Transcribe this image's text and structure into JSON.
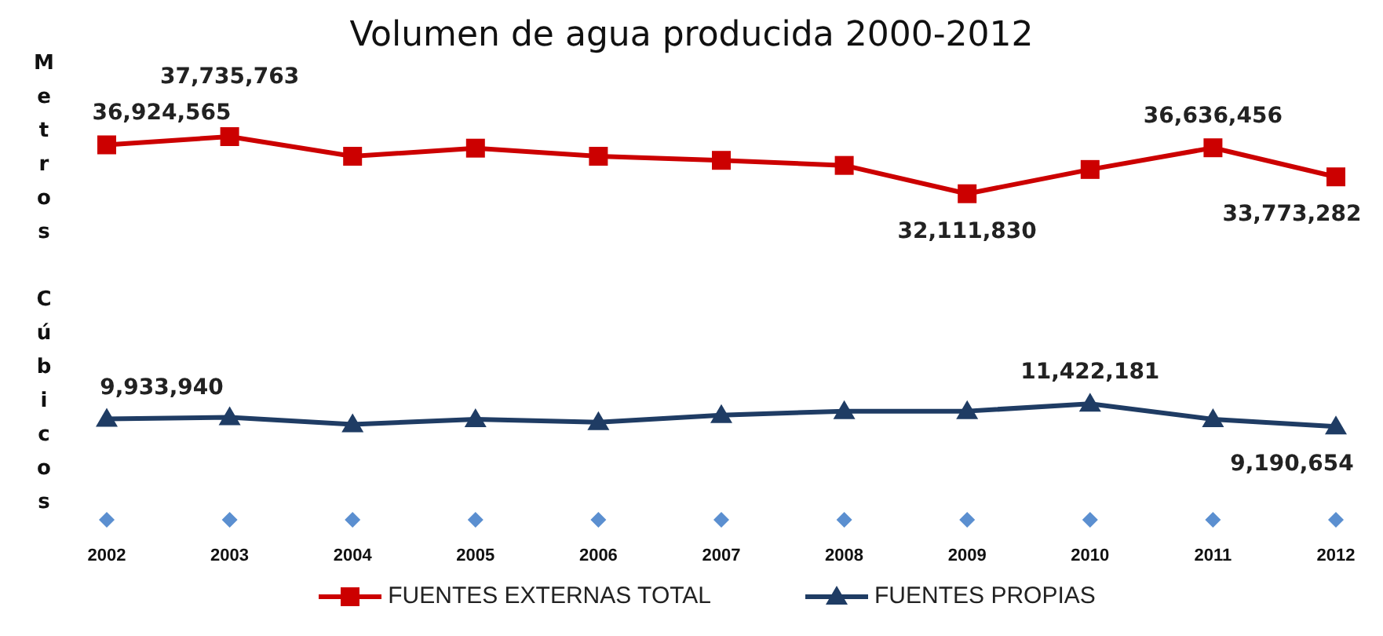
{
  "chart_data": {
    "type": "line",
    "title": "Volumen de agua producida 2000-2012",
    "ylabel": "Metros Cúbicos",
    "categories": [
      "2002",
      "2003",
      "2004",
      "2005",
      "2006",
      "2007",
      "2008",
      "2009",
      "2010",
      "2011",
      "2012"
    ],
    "tick_labels": "x",
    "grid": false,
    "legend": "bottom",
    "series": [
      {
        "name": "FUENTES EXTERNAS TOTAL",
        "color": "#cc0000",
        "marker": "square",
        "values": [
          36924565,
          37735763,
          35800000,
          36600000,
          35800000,
          35400000,
          34900000,
          32111830,
          34500000,
          36636456,
          33773282
        ],
        "value_labels": [
          "36,924,565",
          "37,735,763",
          null,
          null,
          null,
          null,
          null,
          "32,111,830",
          null,
          "36,636,456",
          "33,773,282"
        ]
      },
      {
        "name": "FUENTES PROPIAS",
        "color": "#1f3c64",
        "marker": "triangle",
        "values": [
          9933940,
          10100000,
          9400000,
          9900000,
          9600000,
          10300000,
          10700000,
          10700000,
          11422181,
          9900000,
          9190654
        ],
        "value_labels": [
          "9,933,940",
          null,
          null,
          null,
          null,
          null,
          null,
          null,
          "11,422,181",
          null,
          "9,190,654"
        ]
      },
      {
        "type": "scatter",
        "color": "#5b8fd0",
        "marker": "diamond",
        "values": [
          0,
          0,
          0,
          0,
          0,
          0,
          0,
          0,
          0,
          0,
          0
        ]
      }
    ]
  }
}
